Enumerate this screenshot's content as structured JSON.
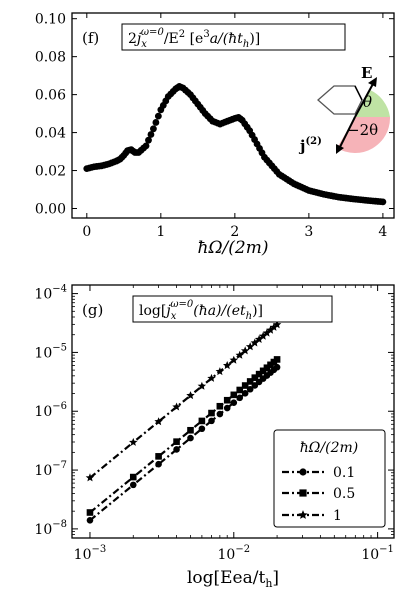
{
  "chart_data": [
    {
      "panel_label": "(f)",
      "type": "scatter",
      "title": "2j_x^{ω=0}/E² [e³a/(ħt_h)]",
      "title_parts": {
        "lead": "2",
        "j": "j",
        "sub": "x",
        "sup": "ω=0",
        "mid": "/E",
        "sq": "2",
        "units": " [e",
        "cube": "3",
        "tail": "a/(ħt",
        "th_sub": "h",
        "close": ")]"
      },
      "xlabel": "ħΩ/(2m)",
      "ylabel": "",
      "xlim": [
        -0.2,
        4.15
      ],
      "ylim": [
        -0.005,
        0.103
      ],
      "xticks": [
        "0",
        "1",
        "2",
        "3",
        "4"
      ],
      "xtick_values": [
        0,
        1,
        2,
        3,
        4
      ],
      "yticks": [
        "0.00",
        "0.02",
        "0.04",
        "0.06",
        "0.08",
        "0.10"
      ],
      "ytick_values": [
        0.0,
        0.02,
        0.04,
        0.06,
        0.08,
        0.1
      ],
      "series": [
        {
          "marker": "circle",
          "x": [
            0.0,
            0.1,
            0.2,
            0.3,
            0.4,
            0.45,
            0.5,
            0.55,
            0.6,
            0.65,
            0.7,
            0.8,
            0.9,
            1.0,
            1.1,
            1.2,
            1.25,
            1.3,
            1.4,
            1.5,
            1.6,
            1.7,
            1.8,
            1.9,
            2.0,
            2.05,
            2.1,
            2.2,
            2.3,
            2.4,
            2.6,
            2.8,
            3.0,
            3.2,
            3.4,
            3.6,
            3.8,
            4.0
          ],
          "values": [
            0.021,
            0.022,
            0.0225,
            0.0235,
            0.025,
            0.026,
            0.028,
            0.0305,
            0.031,
            0.0295,
            0.0295,
            0.033,
            0.042,
            0.052,
            0.059,
            0.063,
            0.0643,
            0.0635,
            0.06,
            0.055,
            0.05,
            0.046,
            0.0445,
            0.046,
            0.0475,
            0.048,
            0.0465,
            0.041,
            0.034,
            0.027,
            0.018,
            0.013,
            0.0095,
            0.0075,
            0.006,
            0.005,
            0.0042,
            0.0035
          ]
        }
      ],
      "inset": {
        "vector_label": "E",
        "angle_label": "θ",
        "current_label": "j",
        "current_sup": "(2)",
        "neg_angle_label": "−2θ",
        "colors": {
          "upper_wedge": "#bfe3a4",
          "lower_wedge": "#f6b3b8",
          "hexagon": "#555555"
        }
      }
    },
    {
      "panel_label": "(g)",
      "type": "line",
      "title": "log[j_x^{ω=0}(ħa)/(et_h)]",
      "title_parts": {
        "lead": "log[",
        "j": "j",
        "sub": "x",
        "sup": "ω=0",
        "tail": "(ħa)/(et",
        "th_sub": "h",
        "close": ")]"
      },
      "xlabel": "log[Eea/t_h]",
      "xlabel_parts": {
        "lead": "log[Eea/t",
        "sub": "h",
        "close": "]"
      },
      "ylabel": "",
      "xscale": "log",
      "yscale": "log",
      "xlim": [
        0.00075,
        0.13
      ],
      "ylim": [
        7e-09,
        0.00014
      ],
      "xticks": [
        {
          "base": "10",
          "exp": "−3",
          "value": 0.001
        },
        {
          "base": "10",
          "exp": "−2",
          "value": 0.01
        },
        {
          "base": "10",
          "exp": "−1",
          "value": 0.1
        }
      ],
      "yticks": [
        {
          "base": "10",
          "exp": "−8",
          "value": 1e-08
        },
        {
          "base": "10",
          "exp": "−7",
          "value": 1e-07
        },
        {
          "base": "10",
          "exp": "−6",
          "value": 1e-06
        },
        {
          "base": "10",
          "exp": "−5",
          "value": 1e-05
        },
        {
          "base": "10",
          "exp": "−4",
          "value": 0.0001
        }
      ],
      "legend_title": "ħΩ/(2m)",
      "legend_placement": "lower-right",
      "x": [
        0.001,
        0.002,
        0.003,
        0.004,
        0.005,
        0.006,
        0.007,
        0.008,
        0.009,
        0.01,
        0.011,
        0.012,
        0.013,
        0.014,
        0.015,
        0.016,
        0.017,
        0.018,
        0.019,
        0.02
      ],
      "series": [
        {
          "name": "0.1",
          "marker": "circle",
          "values": [
            1.4e-08,
            5.6e-08,
            1.26e-07,
            2.24e-07,
            3.5e-07,
            5.04e-07,
            6.86e-07,
            8.96e-07,
            1.134e-06,
            1.4e-06,
            1.694e-06,
            2.016e-06,
            2.366e-06,
            2.744e-06,
            3.15e-06,
            3.584e-06,
            4.046e-06,
            4.536e-06,
            5.054e-06,
            5.6e-06
          ]
        },
        {
          "name": "0.5",
          "marker": "square",
          "values": [
            1.9e-08,
            7.6e-08,
            1.71e-07,
            3.04e-07,
            4.75e-07,
            6.84e-07,
            9.31e-07,
            1.216e-06,
            1.539e-06,
            1.9e-06,
            2.299e-06,
            2.736e-06,
            3.211e-06,
            3.724e-06,
            4.275e-06,
            4.864e-06,
            5.491e-06,
            6.156e-06,
            6.859e-06,
            7.6e-06
          ]
        },
        {
          "name": "1",
          "marker": "star",
          "values": [
            7.4e-08,
            2.96e-07,
            6.66e-07,
            1.184e-06,
            1.85e-06,
            2.664e-06,
            3.626e-06,
            4.736e-06,
            5.994e-06,
            7.4e-06,
            8.954e-06,
            1.0656e-05,
            1.2506e-05,
            1.4504e-05,
            1.665e-05,
            1.8944e-05,
            2.1386e-05,
            2.3976e-05,
            2.6714e-05,
            2.96e-05
          ]
        }
      ]
    }
  ]
}
